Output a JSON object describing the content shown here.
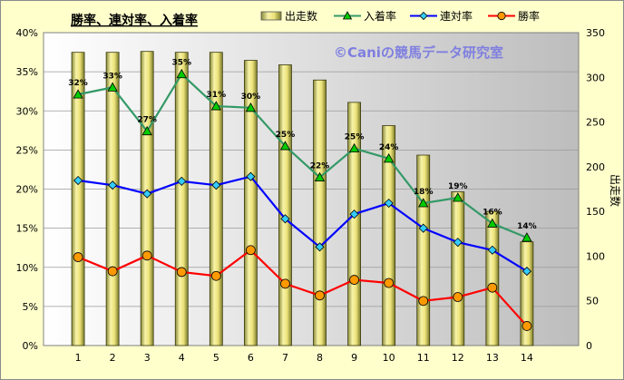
{
  "chart_data": {
    "type": "bar+line",
    "title": "勝率、連対率、入着率",
    "watermark": "©Caniの競馬データ研究室",
    "right_axis_label": "出走数",
    "categories": [
      "1",
      "2",
      "3",
      "4",
      "5",
      "6",
      "7",
      "8",
      "9",
      "10",
      "11",
      "12",
      "13",
      "14"
    ],
    "bars": {
      "name": "出走数",
      "axis": "right",
      "values": [
        328,
        328,
        329,
        328,
        328,
        319,
        314,
        297,
        272,
        246,
        213,
        172,
        150,
        116
      ],
      "color": "#e8e070"
    },
    "series": [
      {
        "name": "入着率",
        "axis": "left",
        "color": "#339966",
        "marker": "triangle",
        "marker_color": "#00cc00",
        "values": [
          32.1,
          33.0,
          27.4,
          34.7,
          30.6,
          30.4,
          25.5,
          21.5,
          25.2,
          23.9,
          18.2,
          18.9,
          15.6,
          13.8
        ],
        "data_labels": [
          "32%",
          "33%",
          "27%",
          "35%",
          "31%",
          "30%",
          "25%",
          "22%",
          "25%",
          "24%",
          "18%",
          "19%",
          "16%",
          "14%"
        ]
      },
      {
        "name": "連対率",
        "axis": "left",
        "color": "#0000ff",
        "marker": "diamond",
        "marker_color": "#33ccff",
        "values": [
          21.1,
          20.5,
          19.4,
          21.0,
          20.5,
          21.6,
          16.2,
          12.6,
          16.8,
          18.2,
          15.0,
          13.2,
          12.2,
          9.5
        ]
      },
      {
        "name": "勝率",
        "axis": "left",
        "color": "#ff0000",
        "marker": "circle",
        "marker_color": "#ff9900",
        "values": [
          11.3,
          9.5,
          11.5,
          9.4,
          8.9,
          12.2,
          7.9,
          6.4,
          8.4,
          8.0,
          5.7,
          6.2,
          7.4,
          2.5
        ]
      }
    ],
    "y_left": {
      "min": 0,
      "max": 40,
      "step": 5,
      "tick_labels": [
        "0%",
        "5%",
        "10%",
        "15%",
        "20%",
        "25%",
        "30%",
        "35%",
        "40%"
      ]
    },
    "y_right": {
      "min": 0,
      "max": 350,
      "step": 50,
      "tick_labels": [
        "0",
        "50",
        "100",
        "150",
        "200",
        "250",
        "300",
        "350"
      ]
    },
    "legend_position": "top",
    "grid": "horizontal"
  }
}
